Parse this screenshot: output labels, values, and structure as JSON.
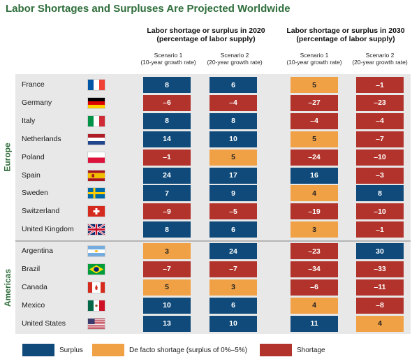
{
  "title": "Labor Shortages and Surpluses Are Projected Worldwide",
  "colors": {
    "surplus": "#0f4a7a",
    "defacto": "#f0a045",
    "shortage": "#b2332b",
    "title": "#2f6e3b",
    "panel": "#e8e8e8"
  },
  "groups": [
    {
      "title": "Labor shortage or surplus in 2020",
      "subtitle": "(percentage of labor supply)"
    },
    {
      "title": "Labor shortage or surplus in 2030",
      "subtitle": "(percentage of labor supply)"
    }
  ],
  "scenarios": [
    {
      "name": "Scenario 1",
      "desc": "(10-year growth rate)"
    },
    {
      "name": "Scenario 2",
      "desc": "(20-year growth rate)"
    },
    {
      "name": "Scenario 1",
      "desc": "(10-year growth rate)"
    },
    {
      "name": "Scenario 2",
      "desc": "(20-year growth rate)"
    }
  ],
  "regions": [
    {
      "name": "Europe"
    },
    {
      "name": "Americas"
    }
  ],
  "legend": [
    {
      "label": "Surplus",
      "key": "surplus"
    },
    {
      "label": "De facto shortage (surplus of 0%–5%)",
      "key": "defacto"
    },
    {
      "label": "Shortage",
      "key": "shortage"
    }
  ],
  "chart_data": {
    "type": "table",
    "title": "Labor Shortages and Surpluses Are Projected Worldwide",
    "columns": [
      "2020 Scenario 1 (10-year growth rate)",
      "2020 Scenario 2 (20-year growth rate)",
      "2030 Scenario 1 (10-year growth rate)",
      "2030 Scenario 2 (20-year growth rate)"
    ],
    "rows": [
      {
        "region": "Europe",
        "country": "France",
        "flag": "france-flag-icon",
        "values": [
          "8",
          "6",
          "5",
          "–1"
        ],
        "cats": [
          "surplus",
          "surplus",
          "defacto",
          "shortage"
        ]
      },
      {
        "region": "Europe",
        "country": "Germany",
        "flag": "germany-flag-icon",
        "values": [
          "–6",
          "–4",
          "–27",
          "–23"
        ],
        "cats": [
          "shortage",
          "shortage",
          "shortage",
          "shortage"
        ]
      },
      {
        "region": "Europe",
        "country": "Italy",
        "flag": "italy-flag-icon",
        "values": [
          "8",
          "8",
          "–4",
          "–4"
        ],
        "cats": [
          "surplus",
          "surplus",
          "shortage",
          "shortage"
        ]
      },
      {
        "region": "Europe",
        "country": "Netherlands",
        "flag": "netherlands-flag-icon",
        "values": [
          "14",
          "10",
          "5",
          "–7"
        ],
        "cats": [
          "surplus",
          "surplus",
          "defacto",
          "shortage"
        ]
      },
      {
        "region": "Europe",
        "country": "Poland",
        "flag": "poland-flag-icon",
        "values": [
          "–1",
          "5",
          "–24",
          "–10"
        ],
        "cats": [
          "shortage",
          "defacto",
          "shortage",
          "shortage"
        ]
      },
      {
        "region": "Europe",
        "country": "Spain",
        "flag": "spain-flag-icon",
        "values": [
          "24",
          "17",
          "16",
          "–3"
        ],
        "cats": [
          "surplus",
          "surplus",
          "surplus",
          "shortage"
        ]
      },
      {
        "region": "Europe",
        "country": "Sweden",
        "flag": "sweden-flag-icon",
        "values": [
          "7",
          "9",
          "4",
          "8"
        ],
        "cats": [
          "surplus",
          "surplus",
          "defacto",
          "surplus"
        ]
      },
      {
        "region": "Europe",
        "country": "Switzerland",
        "flag": "switzerland-flag-icon",
        "values": [
          "–9",
          "–5",
          "–19",
          "–10"
        ],
        "cats": [
          "shortage",
          "shortage",
          "shortage",
          "shortage"
        ]
      },
      {
        "region": "Europe",
        "country": "United Kingdom",
        "flag": "uk-flag-icon",
        "values": [
          "8",
          "6",
          "3",
          "–1"
        ],
        "cats": [
          "surplus",
          "surplus",
          "defacto",
          "shortage"
        ]
      },
      {
        "region": "Americas",
        "country": "Argentina",
        "flag": "argentina-flag-icon",
        "values": [
          "3",
          "24",
          "–23",
          "30"
        ],
        "cats": [
          "defacto",
          "surplus",
          "shortage",
          "surplus"
        ]
      },
      {
        "region": "Americas",
        "country": "Brazil",
        "flag": "brazil-flag-icon",
        "values": [
          "–7",
          "–7",
          "–34",
          "–33"
        ],
        "cats": [
          "shortage",
          "shortage",
          "shortage",
          "shortage"
        ]
      },
      {
        "region": "Americas",
        "country": "Canada",
        "flag": "canada-flag-icon",
        "values": [
          "5",
          "3",
          "–6",
          "–11"
        ],
        "cats": [
          "defacto",
          "defacto",
          "shortage",
          "shortage"
        ]
      },
      {
        "region": "Americas",
        "country": "Mexico",
        "flag": "mexico-flag-icon",
        "values": [
          "10",
          "6",
          "4",
          "–8"
        ],
        "cats": [
          "surplus",
          "surplus",
          "defacto",
          "shortage"
        ]
      },
      {
        "region": "Americas",
        "country": "United States",
        "flag": "usa-flag-icon",
        "values": [
          "13",
          "10",
          "11",
          "4"
        ],
        "cats": [
          "surplus",
          "surplus",
          "surplus",
          "defacto"
        ]
      }
    ]
  }
}
